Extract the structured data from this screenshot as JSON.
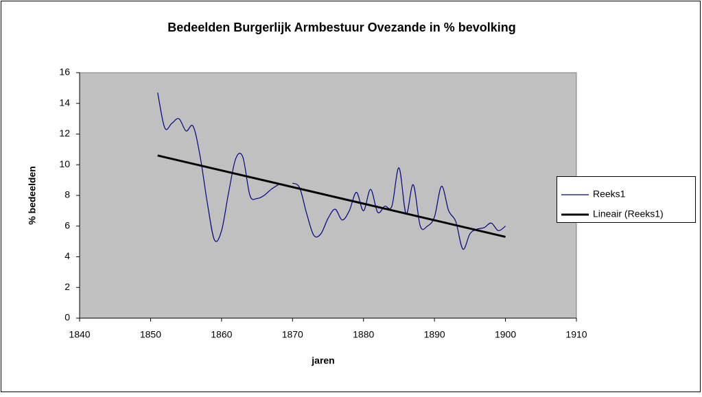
{
  "chart_data": {
    "type": "line",
    "title": "Bedeelden Burgerlijk Armbestuur Ovezande in % bevolking",
    "xlabel": "jaren",
    "ylabel": "% bedeelden",
    "x": [
      1851,
      1852,
      1853,
      1854,
      1855,
      1856,
      1857,
      1858,
      1859,
      1860,
      1861,
      1862,
      1863,
      1864,
      1865,
      1866,
      1867,
      1868,
      1869,
      1870,
      1871,
      1872,
      1873,
      1874,
      1875,
      1876,
      1877,
      1878,
      1879,
      1880,
      1881,
      1882,
      1883,
      1884,
      1885,
      1886,
      1887,
      1888,
      1889,
      1890,
      1891,
      1892,
      1893,
      1894,
      1895,
      1896,
      1897,
      1898,
      1899,
      1900
    ],
    "series": [
      {
        "name": "Reeks1",
        "color": "#000080",
        "smooth": true,
        "values": [
          14.7,
          12.4,
          12.7,
          13.0,
          12.2,
          12.5,
          10.5,
          7.5,
          5.1,
          5.7,
          8.2,
          10.4,
          10.5,
          8.0,
          7.8,
          8.0,
          8.4,
          8.7,
          null,
          8.8,
          8.5,
          6.8,
          5.4,
          5.5,
          6.5,
          7.1,
          6.4,
          7.0,
          8.2,
          7.0,
          8.4,
          6.9,
          7.3,
          7.3,
          9.8,
          6.8,
          8.7,
          6.0,
          6.0,
          6.6,
          8.6,
          7.0,
          6.3,
          4.5,
          5.5,
          5.8,
          5.9,
          6.2,
          5.7,
          6.0
        ]
      },
      {
        "name": "Lineair (Reeks1)",
        "color": "#000000",
        "x": [
          1851,
          1900
        ],
        "values": [
          10.6,
          5.3
        ]
      }
    ],
    "xlim": [
      1840,
      1910
    ],
    "xticks": [
      1840,
      1850,
      1860,
      1870,
      1880,
      1890,
      1900,
      1910
    ],
    "ylim": [
      0,
      16
    ],
    "yticks": [
      0,
      2,
      4,
      6,
      8,
      10,
      12,
      14,
      16
    ],
    "grid": false,
    "legend": "right"
  }
}
